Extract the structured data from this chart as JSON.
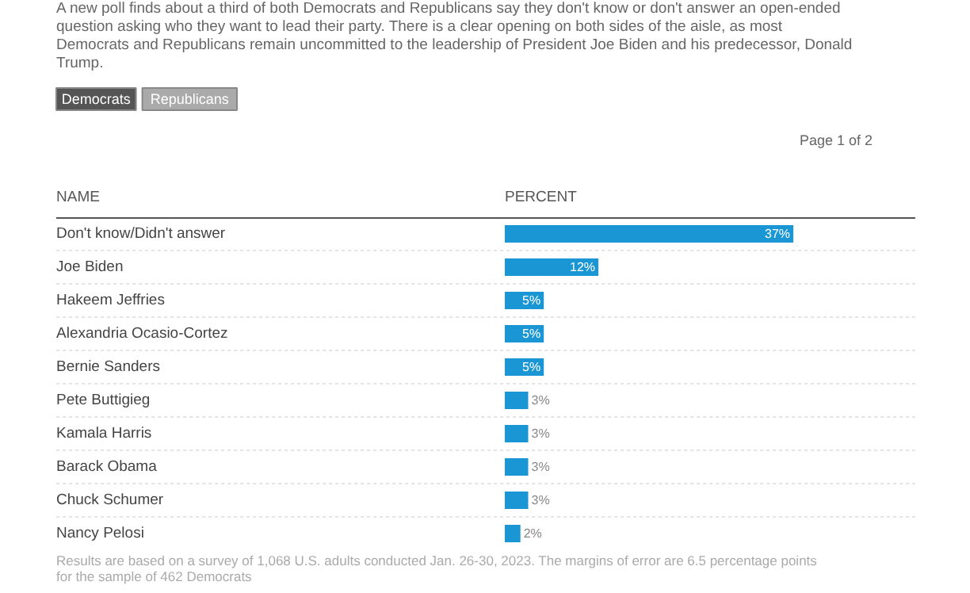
{
  "chart_data": {
    "type": "bar",
    "orientation": "horizontal",
    "subtitle": "A new poll finds about a third of both Democrats and Republicans say they don't know or don't answer an open-ended question asking who they want to lead their party. There is a clear opening on both sides of the aisle, as most Democrats and Republicans remain uncommitted to the leadership of President Joe Biden and his predecessor, Donald Trump.",
    "ylabel": "NAME",
    "xlabel": "PERCENT",
    "categories": [
      "Don't know/Didn't answer",
      "Joe Biden",
      "Hakeem Jeffries",
      "Alexandria Ocasio-Cortez",
      "Bernie Sanders",
      "Pete Buttigieg",
      "Kamala Harris",
      "Barack Obama",
      "Chuck Schumer",
      "Nancy Pelosi"
    ],
    "values": [
      37,
      12,
      5,
      5,
      5,
      3,
      3,
      3,
      3,
      2
    ],
    "value_labels": [
      "37%",
      "12%",
      "5%",
      "5%",
      "5%",
      "3%",
      "3%",
      "3%",
      "3%",
      "2%"
    ],
    "color": "#1a96d4",
    "annotations": [
      "Democrats",
      "Republicans",
      "Page 1 of 2",
      "Results are based on a survey of 1,068 U.S. adults conducted Jan. 26-30, 2023. The margins of error are 6.5 percentage points for the sample of 462 Democrats"
    ]
  }
}
